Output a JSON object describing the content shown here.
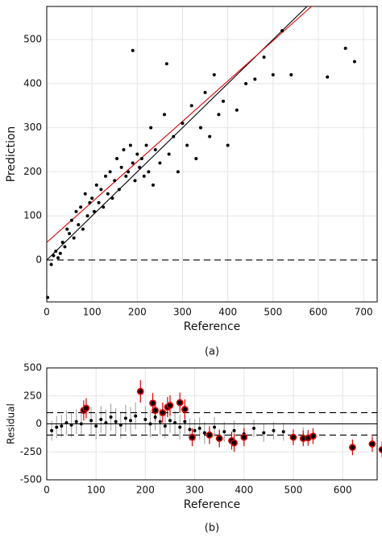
{
  "chart_data": [
    {
      "type": "scatter",
      "caption": "(a)",
      "x_label": "Reference",
      "y_label": "Prediction",
      "xlim": [
        0,
        730
      ],
      "ylim": [
        -95,
        575
      ],
      "xticks": [
        0,
        100,
        200,
        300,
        400,
        500,
        600,
        700
      ],
      "yticks": [
        0,
        100,
        200,
        300,
        400,
        500
      ],
      "grid": true,
      "series": [
        {
          "color": "#000000",
          "x": [
            2,
            10,
            15,
            20,
            25,
            30,
            35,
            40,
            45,
            50,
            55,
            60,
            65,
            70,
            75,
            80,
            85,
            90,
            95,
            100,
            105,
            110,
            115,
            120,
            125,
            130,
            135,
            140,
            145,
            150,
            155,
            160,
            165,
            170,
            175,
            180,
            185,
            190,
            195,
            200,
            205,
            210,
            215,
            220,
            225,
            230,
            235,
            240,
            250,
            260,
            270,
            280,
            290,
            300,
            310,
            320,
            330,
            340,
            350,
            360,
            370,
            380,
            390,
            400,
            420,
            440,
            460,
            480,
            500,
            520,
            540,
            620,
            660,
            680,
            190,
            265
          ],
          "values": [
            -85,
            -10,
            10,
            20,
            5,
            15,
            40,
            30,
            70,
            60,
            90,
            50,
            110,
            80,
            120,
            70,
            150,
            100,
            130,
            140,
            110,
            170,
            130,
            160,
            120,
            190,
            150,
            200,
            140,
            180,
            230,
            160,
            210,
            250,
            190,
            200,
            260,
            220,
            180,
            240,
            210,
            230,
            190,
            260,
            200,
            300,
            170,
            250,
            220,
            330,
            240,
            280,
            200,
            310,
            260,
            350,
            230,
            300,
            380,
            280,
            420,
            330,
            360,
            260,
            340,
            400,
            410,
            460,
            420,
            520,
            420,
            415,
            480,
            450,
            475,
            445
          ]
        }
      ],
      "lines": [
        {
          "color": "#000000",
          "x": [
            0,
            575
          ],
          "y": [
            0,
            575
          ]
        },
        {
          "color": "#dd0000",
          "x": [
            0,
            585
          ],
          "y": [
            40,
            575
          ]
        },
        {
          "color": "#000000",
          "x": [
            0,
            730
          ],
          "y": [
            0,
            0
          ],
          "dashed": true
        }
      ]
    },
    {
      "type": "scatter",
      "caption": "(b)",
      "x_label": "Reference",
      "y_label": "Residual",
      "xlim": [
        0,
        670
      ],
      "ylim": [
        -500,
        500
      ],
      "xticks": [
        0,
        100,
        200,
        300,
        400,
        500,
        600
      ],
      "yticks": [
        -500,
        -250,
        0,
        250,
        500
      ],
      "grid": true,
      "series": [
        {
          "color": "#000000",
          "error_color": "#aaaaaa",
          "x": [
            10,
            20,
            30,
            40,
            50,
            60,
            70,
            90,
            100,
            110,
            120,
            130,
            140,
            150,
            160,
            170,
            180,
            200,
            210,
            220,
            230,
            240,
            250,
            260,
            270,
            280,
            290,
            300,
            310,
            320,
            340,
            360,
            380,
            400,
            420,
            440,
            460,
            480,
            520
          ],
          "values": [
            -60,
            -30,
            -20,
            10,
            -10,
            20,
            0,
            30,
            -20,
            40,
            10,
            60,
            20,
            -10,
            50,
            30,
            70,
            40,
            0,
            60,
            20,
            -20,
            30,
            10,
            -30,
            20,
            -50,
            -60,
            -40,
            -80,
            -30,
            -70,
            -60,
            -90,
            -40,
            -80,
            -60,
            -70,
            -110
          ],
          "errors": [
            90,
            100,
            100,
            110,
            110,
            110,
            110,
            120,
            120,
            120,
            120,
            120,
            120,
            120,
            120,
            120,
            120,
            120,
            120,
            120,
            120,
            110,
            110,
            110,
            110,
            110,
            100,
            100,
            100,
            100,
            90,
            90,
            90,
            90,
            80,
            80,
            80,
            80,
            80
          ]
        },
        {
          "color": "#dd0000",
          "error_color": "#dd0000",
          "x": [
            75,
            80,
            190,
            215,
            220,
            235,
            245,
            250,
            270,
            280,
            295,
            330,
            350,
            375,
            380,
            400,
            500,
            520,
            530,
            540,
            620,
            660,
            680
          ],
          "values": [
            120,
            140,
            290,
            185,
            120,
            100,
            150,
            165,
            190,
            130,
            -120,
            -100,
            -130,
            -150,
            -170,
            -120,
            -120,
            -130,
            -125,
            -110,
            -210,
            -180,
            -230
          ],
          "errors": [
            90,
            90,
            100,
            90,
            90,
            90,
            90,
            90,
            90,
            90,
            80,
            80,
            80,
            80,
            80,
            80,
            70,
            70,
            70,
            70,
            70,
            70,
            70
          ]
        }
      ],
      "lines": [
        {
          "color": "#000000",
          "x": [
            0,
            670
          ],
          "y": [
            0,
            0
          ]
        },
        {
          "color": "#000000",
          "x": [
            0,
            670
          ],
          "y": [
            100,
            100
          ],
          "dashed": true
        },
        {
          "color": "#000000",
          "x": [
            0,
            670
          ],
          "y": [
            -100,
            -100
          ],
          "dashed": true
        }
      ]
    }
  ]
}
